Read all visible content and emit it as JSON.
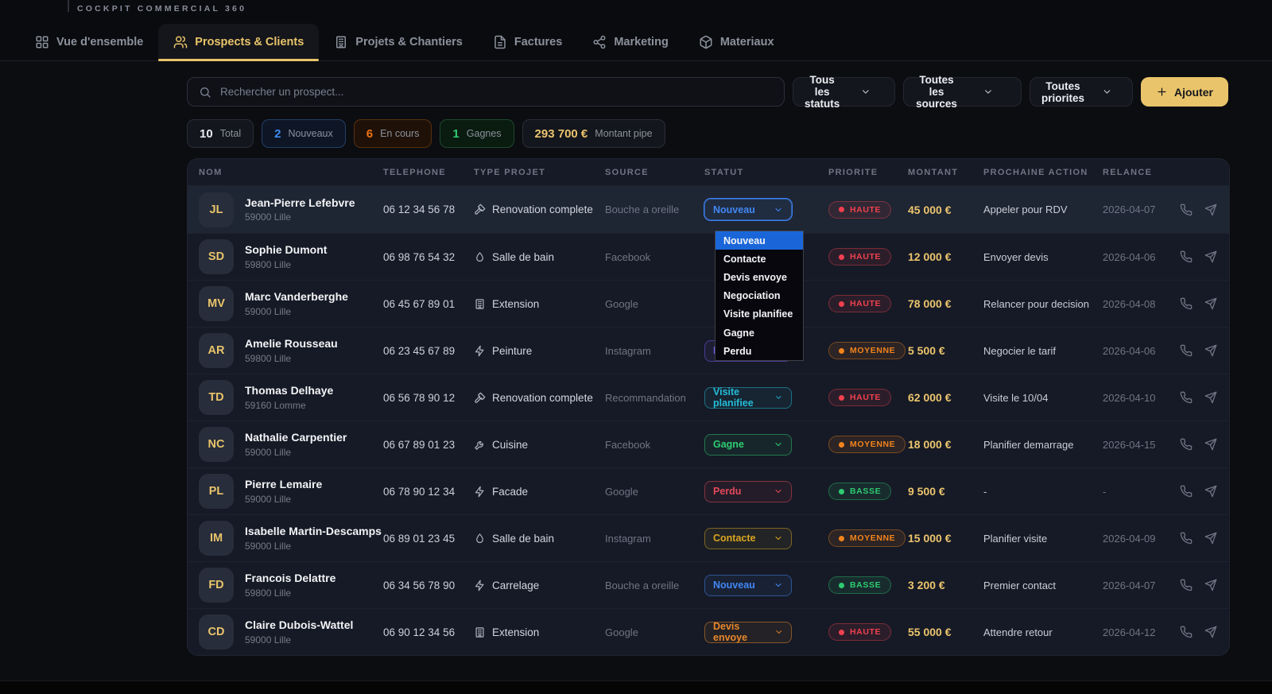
{
  "brand": "COCKPIT COMMERCIAL 360",
  "tabs": [
    {
      "label": "Vue d'ensemble",
      "icon": "grid",
      "active": false
    },
    {
      "label": "Prospects & Clients",
      "icon": "users",
      "active": true
    },
    {
      "label": "Projets & Chantiers",
      "icon": "building",
      "active": false
    },
    {
      "label": "Factures",
      "icon": "file",
      "active": false
    },
    {
      "label": "Marketing",
      "icon": "share",
      "active": false
    },
    {
      "label": "Materiaux",
      "icon": "cube",
      "active": false
    }
  ],
  "toolbar": {
    "search_placeholder": "Rechercher un prospect...",
    "filters": [
      {
        "label": "Tous les statuts"
      },
      {
        "label": "Toutes les sources"
      },
      {
        "label": "Toutes priorites"
      }
    ],
    "add_label": "Ajouter"
  },
  "stats": [
    {
      "value": "10",
      "label": "Total",
      "variant": "neutral",
      "color": "#e8eaee"
    },
    {
      "value": "2",
      "label": "Nouveaux",
      "variant": "blue",
      "color": "#3f8cf3"
    },
    {
      "value": "6",
      "label": "En cours",
      "variant": "orange",
      "color": "#f07316"
    },
    {
      "value": "1",
      "label": "Gagnes",
      "variant": "green",
      "color": "#2ecc71"
    },
    {
      "value": "293 700 €",
      "label": "Montant pipe",
      "variant": "neutral",
      "color": "#eac36e"
    }
  ],
  "table": {
    "columns": [
      "NOM",
      "TELEPHONE",
      "TYPE PROJET",
      "SOURCE",
      "STATUT",
      "PRIORITE",
      "MONTANT",
      "PROCHAINE ACTION",
      "RELANCE"
    ],
    "rows": [
      {
        "initials": "JL",
        "name": "Jean-Pierre Lefebvre",
        "city": "59000 Lille",
        "phone": "06 12 34 56 78",
        "project_icon": "hammer",
        "project": "Renovation complete",
        "source": "Bouche a oreille",
        "status": "Nouveau",
        "status_open": true,
        "highlighted": true,
        "priority": "HAUTE",
        "amount": "45 000 €",
        "next_action": "Appeler pour RDV",
        "relance": "2026-04-07"
      },
      {
        "initials": "SD",
        "name": "Sophie Dumont",
        "city": "59800 Lille",
        "phone": "06 98 76 54 32",
        "project_icon": "droplet",
        "project": "Salle de bain",
        "source": "Facebook",
        "status": null,
        "status_open": false,
        "highlighted": false,
        "priority": "HAUTE",
        "amount": "12 000 €",
        "next_action": "Envoyer devis",
        "relance": "2026-04-06"
      },
      {
        "initials": "MV",
        "name": "Marc Vanderberghe",
        "city": "59000 Lille",
        "phone": "06 45 67 89 01",
        "project_icon": "building",
        "project": "Extension",
        "source": "Google",
        "status": null,
        "status_open": false,
        "highlighted": false,
        "priority": "HAUTE",
        "amount": "78 000 €",
        "next_action": "Relancer pour decision",
        "relance": "2026-04-08"
      },
      {
        "initials": "AR",
        "name": "Amelie Rousseau",
        "city": "59800 Lille",
        "phone": "06 23 45 67 89",
        "project_icon": "zap",
        "project": "Peinture",
        "source": "Instagram",
        "status": "Negociation",
        "status_open": false,
        "highlighted": false,
        "priority": "MOYENNE",
        "amount": "5 500 €",
        "next_action": "Negocier le tarif",
        "relance": "2026-04-06"
      },
      {
        "initials": "TD",
        "name": "Thomas Delhaye",
        "city": "59160 Lomme",
        "phone": "06 56 78 90 12",
        "project_icon": "hammer",
        "project": "Renovation complete",
        "source": "Recommandation",
        "status": "Visite planifiee",
        "status_open": false,
        "highlighted": false,
        "priority": "HAUTE",
        "amount": "62 000 €",
        "next_action": "Visite le 10/04",
        "relance": "2026-04-10"
      },
      {
        "initials": "NC",
        "name": "Nathalie Carpentier",
        "city": "59000 Lille",
        "phone": "06 67 89 01 23",
        "project_icon": "wrench",
        "project": "Cuisine",
        "source": "Facebook",
        "status": "Gagne",
        "status_open": false,
        "highlighted": false,
        "priority": "MOYENNE",
        "amount": "18 000 €",
        "next_action": "Planifier demarrage",
        "relance": "2026-04-15"
      },
      {
        "initials": "PL",
        "name": "Pierre Lemaire",
        "city": "59000 Lille",
        "phone": "06 78 90 12 34",
        "project_icon": "zap",
        "project": "Facade",
        "source": "Google",
        "status": "Perdu",
        "status_open": false,
        "highlighted": false,
        "priority": "BASSE",
        "amount": "9 500 €",
        "next_action": "-",
        "relance": "-"
      },
      {
        "initials": "IM",
        "name": "Isabelle Martin-Descamps",
        "city": "59000 Lille",
        "phone": "06 89 01 23 45",
        "project_icon": "droplet",
        "project": "Salle de bain",
        "source": "Instagram",
        "status": "Contacte",
        "status_open": false,
        "highlighted": false,
        "priority": "MOYENNE",
        "amount": "15 000 €",
        "next_action": "Planifier visite",
        "relance": "2026-04-09"
      },
      {
        "initials": "FD",
        "name": "Francois Delattre",
        "city": "59800 Lille",
        "phone": "06 34 56 78 90",
        "project_icon": "zap",
        "project": "Carrelage",
        "source": "Bouche a oreille",
        "status": "Nouveau",
        "status_open": false,
        "highlighted": false,
        "priority": "BASSE",
        "amount": "3 200 €",
        "next_action": "Premier contact",
        "relance": "2026-04-07"
      },
      {
        "initials": "CD",
        "name": "Claire Dubois-Wattel",
        "city": "59000 Lille",
        "phone": "06 90 12 34 56",
        "project_icon": "building",
        "project": "Extension",
        "source": "Google",
        "status": "Devis envoye",
        "status_open": false,
        "highlighted": false,
        "priority": "HAUTE",
        "amount": "55 000 €",
        "next_action": "Attendre retour",
        "relance": "2026-04-12"
      }
    ]
  },
  "status_colors": {
    "Nouveau": "#4287f5",
    "Contacte": "#d9a521",
    "Devis envoye": "#e8872a",
    "Negociation": "#7a5af5",
    "Visite planifiee": "#25bcd8",
    "Gagne": "#2ecc71",
    "Perdu": "#e4485a"
  },
  "priority_colors": {
    "HAUTE": "#f0404f",
    "MOYENNE": "#f2841c",
    "BASSE": "#2ecc71"
  },
  "status_dropdown": {
    "open_for": "Jean-Pierre Lefebvre",
    "highlighted": "Nouveau",
    "options": [
      "Nouveau",
      "Contacte",
      "Devis envoye",
      "Negociation",
      "Visite planifiee",
      "Gagne",
      "Perdu"
    ]
  }
}
